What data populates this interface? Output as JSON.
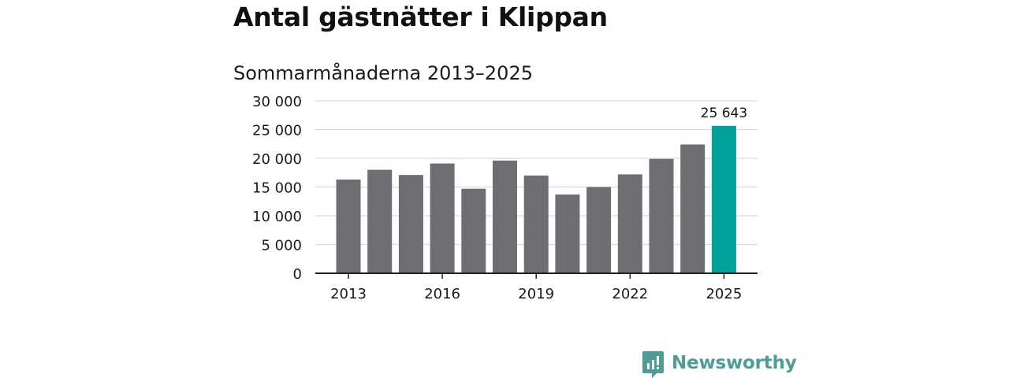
{
  "title": "Antal gästnätter i Klippan",
  "subtitle": "Sommarmånaderna 2013–2025",
  "brand": {
    "name": "Newsworthy",
    "color": "#4d9c98",
    "icon": "newsworthy-logo-icon"
  },
  "colors": {
    "bar": "#6e6d72",
    "highlight": "#00a19a",
    "gridline": "#dcdcdc",
    "axis": "#222222"
  },
  "chart_data": {
    "type": "bar",
    "x": [
      2013,
      2014,
      2015,
      2016,
      2017,
      2018,
      2019,
      2020,
      2021,
      2022,
      2023,
      2024,
      2025
    ],
    "values": [
      16300,
      18000,
      17100,
      19100,
      14700,
      19600,
      17000,
      13700,
      15000,
      17200,
      19900,
      22400,
      25643
    ],
    "xticks": [
      2013,
      2016,
      2019,
      2022,
      2025
    ],
    "xtick_labels": [
      "2013",
      "2016",
      "2019",
      "2022",
      "2025"
    ],
    "yticks": [
      0,
      5000,
      10000,
      15000,
      20000,
      25000,
      30000
    ],
    "ytick_labels": [
      "0",
      "5 000",
      "10 000",
      "15 000",
      "20 000",
      "25 000",
      "30 000"
    ],
    "ylim": [
      0,
      30000
    ],
    "highlight": {
      "x": 2025,
      "label": "25 643"
    },
    "grid": true,
    "legend": "none",
    "xlabel": "",
    "ylabel": ""
  }
}
